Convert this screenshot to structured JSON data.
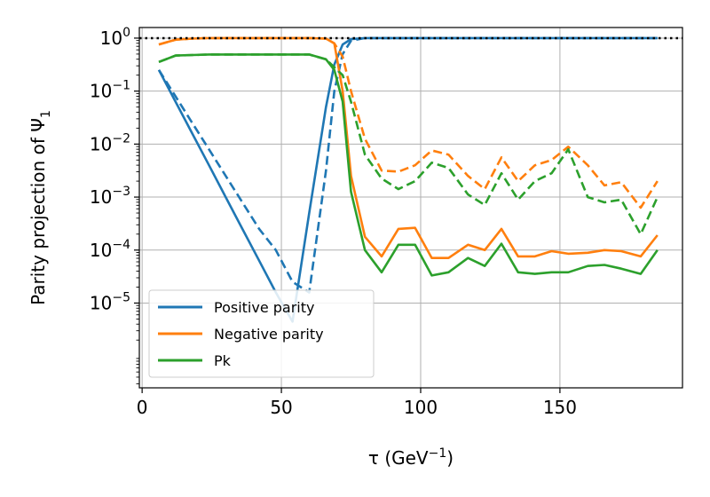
{
  "chart_data": {
    "type": "line",
    "title": "",
    "xlabel_base": "τ (GeV",
    "xlabel_exp": "−1",
    "xlabel_end": ")",
    "ylabel_base": "Parity projection of Ψ",
    "ylabel_sub": "1",
    "xlim": [
      -1,
      194
    ],
    "ylim_log10": [
      -6.6,
      0.2
    ],
    "yscale": "log",
    "grid": true,
    "x_ticks": [
      0,
      50,
      100,
      150
    ],
    "x_tick_labels": [
      "0",
      "50",
      "100",
      "150"
    ],
    "y_tick_exponents": [
      0,
      -1,
      -2,
      -3,
      -4,
      -5
    ],
    "y_tick_bases": [
      "10",
      "10",
      "10",
      "10",
      "10",
      "10"
    ],
    "y_tick_exps": [
      "0",
      "−1",
      "−2",
      "−3",
      "−4",
      "−5"
    ],
    "reference_line": {
      "y": 1.0,
      "style": "dotted",
      "color": "#000000"
    },
    "legend": {
      "position": "lower-left",
      "entries": [
        {
          "label": "Positive parity",
          "color": "#1f77b4"
        },
        {
          "label": "Negative parity",
          "color": "#ff7f0e"
        },
        {
          "label": "Pk",
          "color": "#2ca02c"
        }
      ]
    },
    "x": [
      6,
      12,
      18,
      24,
      30,
      36,
      42,
      48,
      54,
      60,
      66,
      69,
      72,
      75,
      80,
      86,
      92,
      98,
      104,
      110,
      117,
      123,
      129,
      135,
      141,
      147,
      153,
      160,
      166,
      172,
      179,
      185
    ],
    "series": [
      {
        "name": "Positive parity",
        "style": "solid",
        "color": "#1f77b4",
        "log10_values": [
          -0.6,
          -1.2,
          -1.8,
          -2.4,
          -3.0,
          -3.6,
          -4.2,
          -4.8,
          -5.35,
          -3.3,
          -1.3,
          -0.5,
          -0.12,
          -0.02,
          0,
          0,
          0,
          0,
          0,
          0,
          0,
          0,
          0,
          0,
          0,
          0,
          0,
          0,
          0,
          0,
          0,
          0
        ]
      },
      {
        "name": "Positive parity",
        "style": "dashed",
        "color": "#1f77b4",
        "log10_values": [
          -0.6,
          -1.1,
          -1.6,
          -2.1,
          -2.6,
          -3.1,
          -3.6,
          -4.0,
          -4.6,
          -4.8,
          -2.5,
          -1.0,
          -0.3,
          -0.05,
          0,
          0,
          0,
          0,
          0,
          0,
          0,
          0,
          0,
          0,
          0,
          0,
          0,
          0,
          0,
          0,
          0,
          0
        ]
      },
      {
        "name": "Negative parity",
        "style": "solid",
        "color": "#ff7f0e",
        "log10_values": [
          -0.12,
          -0.03,
          -0.01,
          0,
          0,
          0,
          0,
          0,
          0,
          0,
          -0.01,
          -0.1,
          -1.0,
          -2.6,
          -3.75,
          -4.12,
          -3.6,
          -3.58,
          -4.15,
          -4.15,
          -3.9,
          -4.0,
          -3.6,
          -4.12,
          -4.12,
          -4.02,
          -4.07,
          -4.05,
          -4.0,
          -4.02,
          -4.12,
          -3.72
        ]
      },
      {
        "name": "Negative parity",
        "style": "dashed",
        "color": "#ff7f0e",
        "log10_values": [
          -0.12,
          -0.03,
          -0.01,
          0,
          0,
          0,
          0,
          0,
          0,
          0,
          -0.01,
          -0.1,
          -0.35,
          -1.0,
          -1.9,
          -2.5,
          -2.52,
          -2.4,
          -2.12,
          -2.2,
          -2.6,
          -2.85,
          -2.25,
          -2.7,
          -2.4,
          -2.3,
          -2.05,
          -2.4,
          -2.78,
          -2.72,
          -3.2,
          -2.7
        ]
      },
      {
        "name": "Pk",
        "style": "solid",
        "color": "#2ca02c",
        "log10_values": [
          -0.45,
          -0.33,
          -0.32,
          -0.31,
          -0.31,
          -0.31,
          -0.31,
          -0.31,
          -0.31,
          -0.31,
          -0.4,
          -0.6,
          -1.2,
          -2.9,
          -4.0,
          -4.42,
          -3.9,
          -3.9,
          -4.48,
          -4.42,
          -4.15,
          -4.3,
          -3.88,
          -4.42,
          -4.45,
          -4.42,
          -4.42,
          -4.3,
          -4.28,
          -4.35,
          -4.45,
          -4.0
        ]
      },
      {
        "name": "Pk",
        "style": "dashed",
        "color": "#2ca02c",
        "log10_values": [
          -0.45,
          -0.33,
          -0.32,
          -0.31,
          -0.31,
          -0.31,
          -0.31,
          -0.31,
          -0.31,
          -0.31,
          -0.4,
          -0.55,
          -0.7,
          -1.2,
          -2.2,
          -2.65,
          -2.85,
          -2.7,
          -2.35,
          -2.45,
          -2.95,
          -3.15,
          -2.55,
          -3.05,
          -2.7,
          -2.55,
          -2.1,
          -3.0,
          -3.1,
          -3.05,
          -3.7,
          -3.0
        ]
      }
    ]
  }
}
